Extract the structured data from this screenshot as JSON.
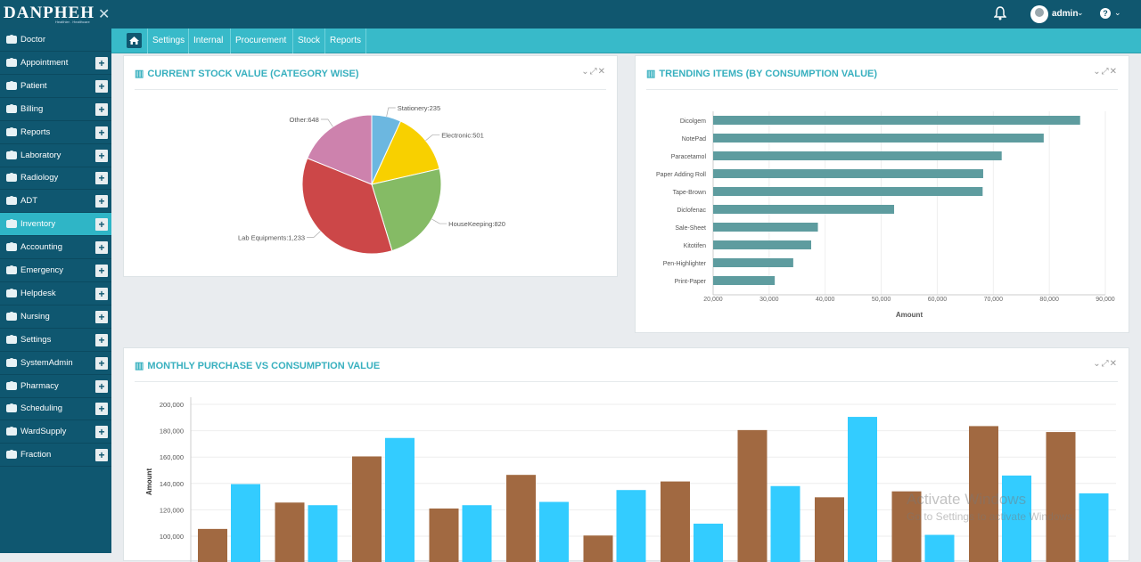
{
  "app": {
    "logo": "DANPHEH",
    "tagline": "Healthier . Healthcare",
    "close": "✕"
  },
  "topbar": {
    "user": "admin"
  },
  "sidebar": {
    "items": [
      {
        "label": "Doctor",
        "icon": "stethoscope-icon",
        "plus": false
      },
      {
        "label": "Appointment",
        "icon": "appointment-icon",
        "plus": true
      },
      {
        "label": "Patient",
        "icon": "patient-icon",
        "plus": true
      },
      {
        "label": "Billing",
        "icon": "billing-icon",
        "plus": true
      },
      {
        "label": "Reports",
        "icon": "reports-icon",
        "plus": true
      },
      {
        "label": "Laboratory",
        "icon": "microscope-icon",
        "plus": true
      },
      {
        "label": "Radiology",
        "icon": "radiology-icon",
        "plus": true
      },
      {
        "label": "ADT",
        "icon": "bed-icon",
        "plus": true
      },
      {
        "label": "Inventory",
        "icon": "inventory-icon",
        "plus": true
      },
      {
        "label": "Accounting",
        "icon": "accounting-icon",
        "plus": true
      },
      {
        "label": "Emergency",
        "icon": "ambulance-icon",
        "plus": true
      },
      {
        "label": "Helpdesk",
        "icon": "helpdesk-icon",
        "plus": true
      },
      {
        "label": "Nursing",
        "icon": "nursing-icon",
        "plus": true
      },
      {
        "label": "Settings",
        "icon": "gear-icon",
        "plus": true
      },
      {
        "label": "SystemAdmin",
        "icon": "system-admin-icon",
        "plus": true
      },
      {
        "label": "Pharmacy",
        "icon": "pharmacy-icon",
        "plus": true
      },
      {
        "label": "Scheduling",
        "icon": "calendar-icon",
        "plus": true
      },
      {
        "label": "WardSupply",
        "icon": "ward-supply-icon",
        "plus": true
      },
      {
        "label": "Fraction",
        "icon": "percent-icon",
        "plus": true
      }
    ],
    "active_index": 8,
    "plus_label": "+"
  },
  "subnav": {
    "tabs": [
      "Settings",
      "Internal",
      "Procurement",
      "Stock",
      "Reports"
    ]
  },
  "panels": {
    "stock": {
      "title": "CURRENT STOCK VALUE (CATEGORY WISE)",
      "tools": "⌄⤢✕"
    },
    "trending": {
      "title": "TRENDING ITEMS (BY CONSUMPTION VALUE)",
      "tools": "⌄⤢✕"
    },
    "monthly": {
      "title": "MONTHLY PURCHASE VS CONSUMPTION VALUE",
      "tools": "⌄⤢✕"
    }
  },
  "watermark": {
    "line1": "Activate Windows",
    "line2": "Go to Settings to activate Windows."
  },
  "colors": {
    "topbar": "#10576f",
    "sidebar": "#0f5770",
    "accent": "#38bac9"
  },
  "chart_data": [
    {
      "type": "pie",
      "labels": [
        "Stationery",
        "Electronic",
        "HouseKeeping",
        "Lab Equipments",
        "Other"
      ],
      "values": [
        235,
        501,
        820,
        1233,
        648
      ],
      "display_labels": [
        "Stationery:235",
        "Electronic:501",
        "HouseKeeping:820",
        "Lab Equipments:1,233",
        "Other:648"
      ],
      "colors": [
        "#6cb7e0",
        "#f8d000",
        "#85bb65",
        "#cc4748",
        "#cd82ad"
      ]
    },
    {
      "type": "bar",
      "orientation": "horizontal",
      "categories": [
        "Dicolgem",
        "NotePad",
        "Paracetamol",
        "Paper Adding Roll",
        "Tape-Brown",
        "Diclofenac",
        "Sale-Sheet",
        "Kitotifen",
        "Pen-Highlighter",
        "Print-Paper"
      ],
      "values": [
        85500,
        79000,
        71500,
        68200,
        68100,
        52300,
        38700,
        37500,
        34300,
        31000
      ],
      "xlim": [
        20000,
        90000
      ],
      "xticks": [
        "20,000",
        "30,000",
        "40,000",
        "50,000",
        "60,000",
        "70,000",
        "80,000",
        "90,000"
      ],
      "xlabel": "Amount",
      "color": "#5e9c9f"
    },
    {
      "type": "bar",
      "orientation": "vertical",
      "series": [
        {
          "color": "#a16941",
          "values": [
            105500,
            125500,
            160500,
            121000,
            146500,
            100500,
            141500,
            180500,
            129500,
            134000,
            183500,
            179000
          ]
        },
        {
          "color": "#33ccff",
          "values": [
            139500,
            123500,
            174500,
            123500,
            126000,
            135000,
            109500,
            138000,
            190500,
            101000,
            146000,
            132500
          ]
        }
      ],
      "ylim": [
        90000,
        200000
      ],
      "yticks": [
        "100,000",
        "120,000",
        "140,000",
        "160,000",
        "180,000",
        "200,000"
      ],
      "ylabel": "Amount"
    }
  ]
}
